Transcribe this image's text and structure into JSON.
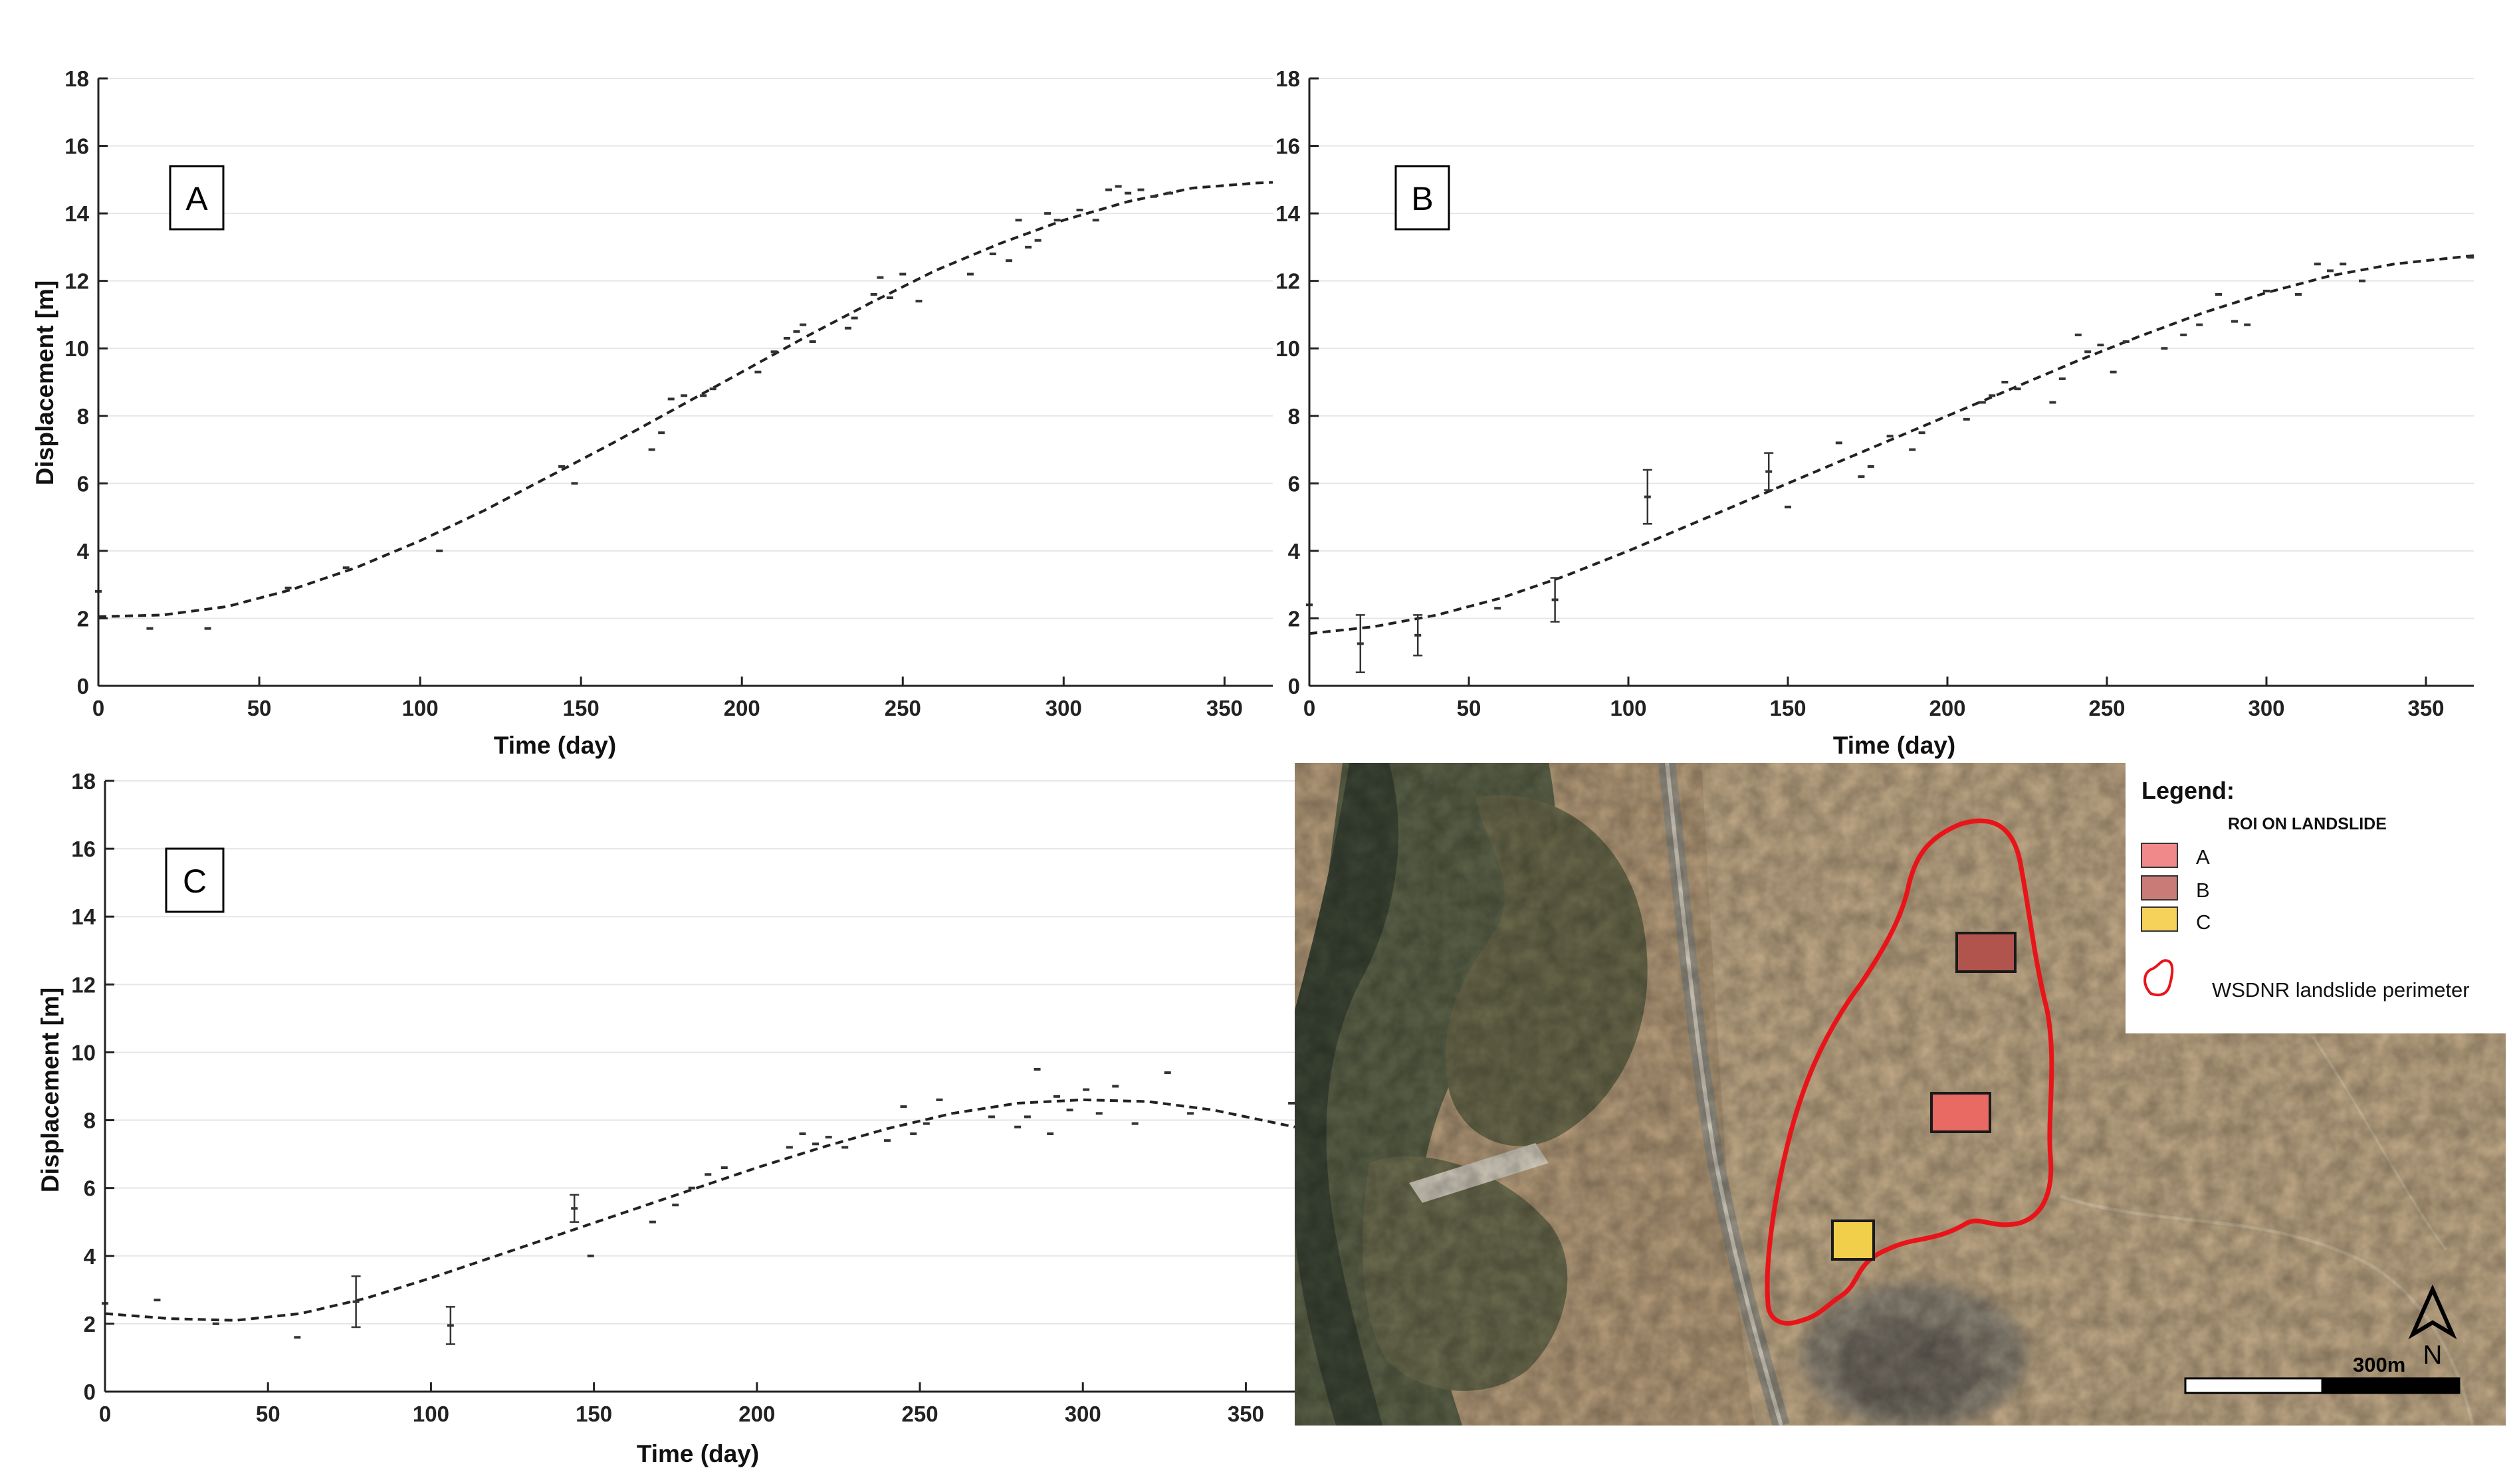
{
  "chart_data": [
    {
      "type": "scatter",
      "panel": "A",
      "xlabel": "Time (day)",
      "ylabel": "Displacement [m]",
      "xlim": [
        0,
        365
      ],
      "ylim": [
        0,
        18
      ],
      "xticks": [
        0,
        50,
        100,
        150,
        200,
        250,
        300,
        350
      ],
      "yticks": [
        0,
        2,
        4,
        6,
        8,
        10,
        12,
        14,
        16,
        18
      ],
      "grid": "horizontal",
      "points": {
        "x": [
          0,
          16,
          34,
          59,
          77,
          106,
          144,
          148,
          172,
          175,
          178,
          182,
          188,
          191,
          205,
          210,
          214,
          217,
          219,
          222,
          233,
          235,
          241,
          243,
          246,
          250,
          255,
          271,
          278,
          283,
          286,
          289,
          292,
          295,
          298,
          305,
          310,
          314,
          317,
          320,
          324,
          328,
          333
        ],
        "y": [
          2.8,
          1.7,
          1.7,
          2.9,
          3.5,
          4.0,
          6.5,
          6.0,
          7.0,
          7.5,
          8.5,
          8.6,
          8.6,
          8.8,
          9.3,
          9.9,
          10.3,
          10.5,
          10.7,
          10.2,
          10.6,
          10.9,
          11.6,
          12.1,
          11.5,
          12.2,
          11.4,
          12.2,
          12.8,
          12.6,
          13.8,
          13.0,
          13.2,
          14.0,
          13.8,
          14.1,
          13.8,
          14.7,
          14.8,
          14.6,
          14.7,
          14.5,
          14.6
        ]
      },
      "error_bars": [],
      "fit": {
        "x": [
          0,
          20,
          40,
          60,
          80,
          100,
          120,
          140,
          160,
          180,
          200,
          220,
          240,
          260,
          280,
          300,
          320,
          340,
          360,
          365
        ],
        "y": [
          2.05,
          2.1,
          2.35,
          2.85,
          3.5,
          4.3,
          5.2,
          6.2,
          7.2,
          8.25,
          9.3,
          10.35,
          11.35,
          12.3,
          13.1,
          13.8,
          14.35,
          14.75,
          14.9,
          14.92
        ]
      }
    },
    {
      "type": "scatter",
      "panel": "B",
      "xlabel": "Time (day)",
      "ylabel": "",
      "xlim": [
        0,
        365
      ],
      "ylim": [
        0,
        18
      ],
      "xticks": [
        0,
        50,
        100,
        150,
        200,
        250,
        300,
        350
      ],
      "yticks": [
        0,
        2,
        4,
        6,
        8,
        10,
        12,
        14,
        16,
        18
      ],
      "grid": "horizontal",
      "points": {
        "x": [
          0,
          59,
          150,
          166,
          173,
          176,
          182,
          189,
          192,
          206,
          211,
          214,
          218,
          222,
          233,
          236,
          241,
          244,
          248,
          252,
          256,
          268,
          274,
          279,
          285,
          290,
          294,
          300,
          310,
          316,
          320,
          324,
          330,
          364
        ],
        "y": [
          2.4,
          2.3,
          5.3,
          7.2,
          6.2,
          6.5,
          7.4,
          7.0,
          7.5,
          7.9,
          8.4,
          8.6,
          9.0,
          8.8,
          8.4,
          9.1,
          10.4,
          9.9,
          10.1,
          9.3,
          10.2,
          10.0,
          10.4,
          10.7,
          11.6,
          10.8,
          10.7,
          11.7,
          11.6,
          12.5,
          12.3,
          12.5,
          12.0,
          12.7
        ]
      },
      "error_bars": [
        {
          "x": 16,
          "low": 0.4,
          "high": 2.1
        },
        {
          "x": 34,
          "low": 0.9,
          "high": 2.1
        },
        {
          "x": 77,
          "low": 1.9,
          "high": 3.2
        },
        {
          "x": 106,
          "low": 4.8,
          "high": 6.4
        },
        {
          "x": 144,
          "low": 5.8,
          "high": 6.9
        }
      ],
      "fit": {
        "x": [
          0,
          20,
          40,
          60,
          80,
          100,
          120,
          140,
          160,
          180,
          200,
          220,
          240,
          260,
          280,
          300,
          320,
          340,
          365
        ],
        "y": [
          1.55,
          1.75,
          2.1,
          2.6,
          3.25,
          4.0,
          4.8,
          5.6,
          6.4,
          7.2,
          8.0,
          8.8,
          9.6,
          10.35,
          11.05,
          11.65,
          12.15,
          12.5,
          12.75
        ]
      }
    },
    {
      "type": "scatter",
      "panel": "C",
      "xlabel": "Time (day)",
      "ylabel": "Displacement [m]",
      "xlim": [
        0,
        365
      ],
      "ylim": [
        0,
        18
      ],
      "xticks": [
        0,
        50,
        100,
        150,
        200,
        250,
        300,
        350
      ],
      "yticks": [
        0,
        2,
        4,
        6,
        8,
        10,
        12,
        14,
        16,
        18
      ],
      "grid": "horizontal",
      "points": {
        "x": [
          0,
          16,
          34,
          59,
          149,
          168,
          175,
          180,
          185,
          190,
          210,
          214,
          218,
          222,
          227,
          240,
          245,
          248,
          252,
          256,
          272,
          280,
          283,
          286,
          290,
          292,
          296,
          301,
          305,
          310,
          316,
          326,
          333,
          364
        ],
        "y": [
          2.6,
          2.7,
          2.0,
          1.6,
          4.0,
          5.0,
          5.5,
          6.0,
          6.4,
          6.6,
          7.2,
          7.6,
          7.3,
          7.5,
          7.2,
          7.4,
          8.4,
          7.6,
          7.9,
          8.6,
          8.1,
          7.8,
          8.1,
          9.5,
          7.6,
          8.7,
          8.3,
          8.9,
          8.2,
          9.0,
          7.9,
          9.4,
          8.2,
          8.5
        ]
      },
      "error_bars": [
        {
          "x": 77,
          "low": 1.9,
          "high": 3.4
        },
        {
          "x": 106,
          "low": 1.4,
          "high": 2.5
        },
        {
          "x": 144,
          "low": 5.0,
          "high": 5.8
        }
      ],
      "fit": {
        "x": [
          0,
          20,
          40,
          60,
          80,
          100,
          120,
          140,
          160,
          180,
          200,
          220,
          240,
          260,
          280,
          300,
          320,
          340,
          365
        ],
        "y": [
          2.3,
          2.15,
          2.1,
          2.3,
          2.75,
          3.35,
          4.0,
          4.65,
          5.3,
          5.95,
          6.6,
          7.2,
          7.75,
          8.2,
          8.5,
          8.6,
          8.55,
          8.3,
          7.8
        ]
      }
    }
  ],
  "panel_labels": [
    "A",
    "B",
    "C"
  ],
  "map": {
    "legend": {
      "title": "Legend:",
      "subtitle": "ROI ON LANDSLIDE",
      "items": [
        {
          "label": "A",
          "color": "#f08a8a"
        },
        {
          "label": "B",
          "color": "#c97b78"
        },
        {
          "label": "C",
          "color": "#f6d25a"
        }
      ],
      "perimeter_label": "WSDNR landslide perimeter",
      "perimeter_color": "#e8141a"
    },
    "scale_label": "300m",
    "north_label": "N",
    "roi": [
      {
        "label": "A",
        "color": "#e86a62"
      },
      {
        "label": "B",
        "color": "#b2544e"
      },
      {
        "label": "C",
        "color": "#f2cf4a"
      }
    ]
  }
}
